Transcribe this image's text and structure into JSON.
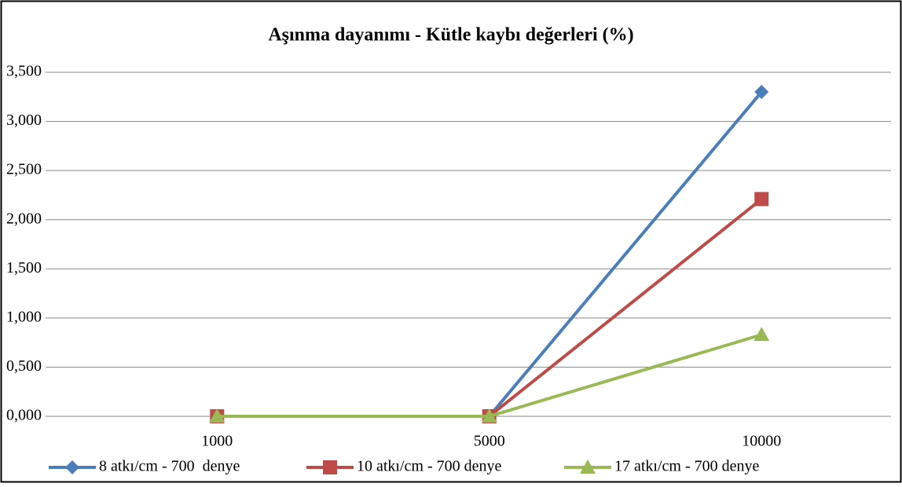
{
  "chart_data": {
    "type": "line",
    "title": "Aşınma dayanımı - Kütle kaybı değerleri (%)",
    "categories": [
      "1000",
      "5000",
      "10000"
    ],
    "series": [
      {
        "name": "8 atkı/cm - 700  denye",
        "color": "#4a7ebb",
        "marker": "diamond",
        "values": [
          0,
          0,
          3.3
        ]
      },
      {
        "name": "10 atkı/cm - 700 denye",
        "color": "#be4b48",
        "marker": "square",
        "values": [
          0,
          0,
          2.21
        ]
      },
      {
        "name": "17 atkı/cm - 700 denye",
        "color": "#98b954",
        "marker": "triangle",
        "values": [
          0,
          0,
          0.83
        ]
      }
    ],
    "ylim": [
      0,
      3.5
    ],
    "yticks": [
      {
        "value": 0,
        "label": "0,000"
      },
      {
        "value": 0.5,
        "label": "0,500"
      },
      {
        "value": 1,
        "label": "1,000"
      },
      {
        "value": 1.5,
        "label": "1,500"
      },
      {
        "value": 2,
        "label": "2,000"
      },
      {
        "value": 2.5,
        "label": "2,500"
      },
      {
        "value": 3,
        "label": "3,000"
      },
      {
        "value": 3.5,
        "label": "3,500"
      }
    ],
    "grid": true,
    "legend": "bottom"
  }
}
